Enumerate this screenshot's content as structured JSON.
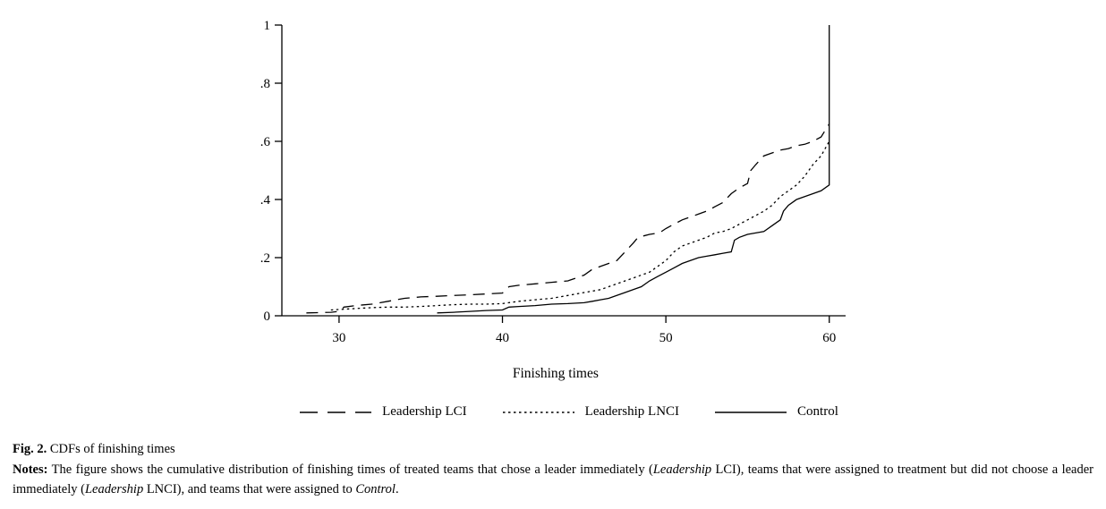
{
  "figure": {
    "caption_label": "Fig. 2.",
    "caption_text": "CDFs of finishing times",
    "notes_label": "Notes:",
    "notes_segments": [
      {
        "text": " The figure shows the cumulative distribution of finishing times of treated teams that chose a leader immediately (",
        "style": "normal"
      },
      {
        "text": "Leadership",
        "style": "italic"
      },
      {
        "text": " LCI), teams that were assigned to treatment but did not choose a leader immediately (",
        "style": "normal"
      },
      {
        "text": "Leadership",
        "style": "italic"
      },
      {
        "text": " LNCI), and teams that were assigned to ",
        "style": "normal"
      },
      {
        "text": "Control",
        "style": "italic"
      },
      {
        "text": ".",
        "style": "normal"
      }
    ]
  },
  "chart_data": {
    "type": "line",
    "subtype": "empirical-cdf",
    "title": "",
    "xlabel": "Finishing times",
    "ylabel": "",
    "xlim": [
      26.5,
      61
    ],
    "ylim": [
      0,
      1
    ],
    "x_ticks": [
      30,
      40,
      50,
      60
    ],
    "x_tick_labels": [
      "30",
      "40",
      "50",
      "60"
    ],
    "y_ticks": [
      0,
      0.2,
      0.4,
      0.6,
      0.8,
      1
    ],
    "y_tick_labels": [
      "0",
      ".2",
      ".4",
      ".6",
      ".8",
      "1"
    ],
    "grid": false,
    "legend_position": "bottom",
    "line_color": "#000000",
    "series": [
      {
        "name": "Leadership LCI",
        "dash": "13,8",
        "points": [
          [
            28,
            0.01
          ],
          [
            29.5,
            0.012
          ],
          [
            30,
            0.015
          ],
          [
            30.3,
            0.03
          ],
          [
            31,
            0.035
          ],
          [
            32,
            0.04
          ],
          [
            33,
            0.05
          ],
          [
            33.5,
            0.055
          ],
          [
            34,
            0.06
          ],
          [
            35,
            0.065
          ],
          [
            36,
            0.067
          ],
          [
            37,
            0.07
          ],
          [
            38,
            0.072
          ],
          [
            39,
            0.075
          ],
          [
            40,
            0.078
          ],
          [
            40.4,
            0.1
          ],
          [
            41,
            0.105
          ],
          [
            42,
            0.11
          ],
          [
            43,
            0.115
          ],
          [
            44,
            0.12
          ],
          [
            44.5,
            0.13
          ],
          [
            45,
            0.14
          ],
          [
            45.5,
            0.16
          ],
          [
            46,
            0.17
          ],
          [
            46.5,
            0.18
          ],
          [
            47,
            0.19
          ],
          [
            47.5,
            0.22
          ],
          [
            48,
            0.25
          ],
          [
            48.3,
            0.27
          ],
          [
            49,
            0.28
          ],
          [
            49.6,
            0.285
          ],
          [
            50,
            0.3
          ],
          [
            50.5,
            0.315
          ],
          [
            51,
            0.33
          ],
          [
            51.5,
            0.34
          ],
          [
            52,
            0.35
          ],
          [
            52.5,
            0.36
          ],
          [
            53,
            0.375
          ],
          [
            53.5,
            0.39
          ],
          [
            54,
            0.42
          ],
          [
            54.5,
            0.44
          ],
          [
            55,
            0.455
          ],
          [
            55.2,
            0.5
          ],
          [
            55.5,
            0.52
          ],
          [
            56,
            0.55
          ],
          [
            56.5,
            0.56
          ],
          [
            57,
            0.57
          ],
          [
            57.5,
            0.575
          ],
          [
            58,
            0.585
          ],
          [
            58.5,
            0.59
          ],
          [
            59,
            0.6
          ],
          [
            59.5,
            0.615
          ],
          [
            60,
            0.66
          ]
        ]
      },
      {
        "name": "Leadership LNCI",
        "dash": "2.5,3.5",
        "points": [
          [
            29.5,
            0.02
          ],
          [
            31,
            0.025
          ],
          [
            32,
            0.028
          ],
          [
            33,
            0.03
          ],
          [
            34,
            0.03
          ],
          [
            35,
            0.032
          ],
          [
            36,
            0.035
          ],
          [
            37,
            0.038
          ],
          [
            38,
            0.04
          ],
          [
            39,
            0.04
          ],
          [
            40,
            0.042
          ],
          [
            41,
            0.05
          ],
          [
            42,
            0.055
          ],
          [
            43,
            0.06
          ],
          [
            44,
            0.07
          ],
          [
            45,
            0.08
          ],
          [
            45.5,
            0.085
          ],
          [
            46,
            0.09
          ],
          [
            46.5,
            0.1
          ],
          [
            47,
            0.11
          ],
          [
            47.5,
            0.12
          ],
          [
            48,
            0.13
          ],
          [
            48.5,
            0.14
          ],
          [
            49,
            0.15
          ],
          [
            49.5,
            0.17
          ],
          [
            50,
            0.19
          ],
          [
            50.5,
            0.22
          ],
          [
            51,
            0.24
          ],
          [
            51.5,
            0.25
          ],
          [
            52,
            0.26
          ],
          [
            52.5,
            0.27
          ],
          [
            53,
            0.285
          ],
          [
            53.5,
            0.29
          ],
          [
            54,
            0.3
          ],
          [
            54.5,
            0.315
          ],
          [
            55,
            0.33
          ],
          [
            55.5,
            0.345
          ],
          [
            56,
            0.36
          ],
          [
            56.5,
            0.38
          ],
          [
            57,
            0.41
          ],
          [
            57.5,
            0.43
          ],
          [
            58,
            0.45
          ],
          [
            58.5,
            0.48
          ],
          [
            59,
            0.52
          ],
          [
            59.5,
            0.55
          ],
          [
            60,
            0.6
          ]
        ]
      },
      {
        "name": "Control",
        "dash": "",
        "points": [
          [
            36,
            0.01
          ],
          [
            37,
            0.012
          ],
          [
            38,
            0.015
          ],
          [
            39,
            0.018
          ],
          [
            40,
            0.02
          ],
          [
            40.4,
            0.03
          ],
          [
            41,
            0.032
          ],
          [
            42,
            0.035
          ],
          [
            43,
            0.04
          ],
          [
            44,
            0.042
          ],
          [
            45,
            0.045
          ],
          [
            45.5,
            0.05
          ],
          [
            46,
            0.055
          ],
          [
            46.5,
            0.06
          ],
          [
            47,
            0.07
          ],
          [
            47.5,
            0.08
          ],
          [
            48,
            0.09
          ],
          [
            48.5,
            0.1
          ],
          [
            49,
            0.12
          ],
          [
            49.5,
            0.135
          ],
          [
            50,
            0.15
          ],
          [
            50.5,
            0.165
          ],
          [
            51,
            0.18
          ],
          [
            51.5,
            0.19
          ],
          [
            52,
            0.2
          ],
          [
            52.5,
            0.205
          ],
          [
            53,
            0.21
          ],
          [
            53.5,
            0.215
          ],
          [
            54,
            0.22
          ],
          [
            54.2,
            0.26
          ],
          [
            54.5,
            0.27
          ],
          [
            55,
            0.28
          ],
          [
            55.5,
            0.285
          ],
          [
            56,
            0.29
          ],
          [
            56.5,
            0.31
          ],
          [
            57,
            0.33
          ],
          [
            57.2,
            0.36
          ],
          [
            57.5,
            0.38
          ],
          [
            58,
            0.4
          ],
          [
            58.5,
            0.41
          ],
          [
            59,
            0.42
          ],
          [
            59.5,
            0.43
          ],
          [
            60,
            0.45
          ],
          [
            60,
            1.0
          ]
        ]
      }
    ]
  }
}
